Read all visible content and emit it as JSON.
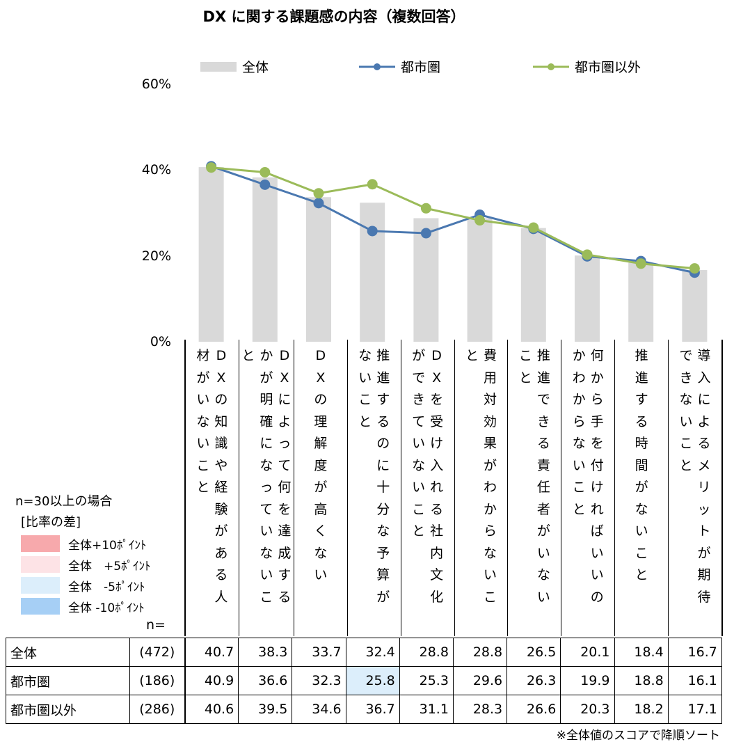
{
  "title": "DX に関する課題感の内容（複数回答）",
  "legend": {
    "overall": "全体",
    "urban": "都市圏",
    "non_urban": "都市圏以外"
  },
  "colors": {
    "bar": "#d9d9d9",
    "urban": "#4a78b0",
    "non_urban": "#9bbb59",
    "minus5": "#dceefb",
    "minus10": "#a6cff5",
    "plus5": "#fde3e6",
    "plus10": "#f7a9ac"
  },
  "key": {
    "heading": "n=30以上の場合",
    "subheading": "[比率の差]",
    "plus10": "全体+10ﾎﾟｲﾝﾄ",
    "plus5": "全体　+5ﾎﾟｲﾝﾄ",
    "minus5": "全体　-5ﾎﾟｲﾝﾄ",
    "minus10": "全体 -10ﾎﾟｲﾝﾄ"
  },
  "n_label": "n=",
  "footnote": "※全体値のスコアで降順ソート",
  "chart_data": {
    "type": "bar",
    "title": "DX に関する課題感の内容（複数回答）",
    "ylim": [
      0,
      60
    ],
    "yticks": [
      "0%",
      "20%",
      "40%",
      "60%"
    ],
    "categories": [
      "DXの知識や経験がある人材がいないこと",
      "DXによって何を達成するかが明確になっていないこと",
      "DXの理解度が高くない",
      "推進するのに十分な予算がないこと",
      "DXを受け入れる社内文化ができていないこと",
      "費用対効果がわからないこと",
      "推進できる責任者がいないこと",
      "何から手を付ければいいのかわからないこと",
      "推進する時間がないこと",
      "導入によるメリットが期待できないこと"
    ],
    "series": [
      {
        "name": "全体",
        "n": "(472)",
        "kind": "bar",
        "values": [
          40.7,
          38.3,
          33.7,
          32.4,
          28.8,
          28.8,
          26.5,
          20.1,
          18.4,
          16.7
        ],
        "labels": [
          "40.7",
          "38.3",
          "33.7",
          "32.4",
          "28.8",
          "28.8",
          "26.5",
          "20.1",
          "18.4",
          "16.7"
        ]
      },
      {
        "name": "都市圏",
        "n": "(186)",
        "kind": "line",
        "values": [
          40.9,
          36.6,
          32.3,
          25.8,
          25.3,
          29.6,
          26.3,
          19.9,
          18.8,
          16.1
        ],
        "labels": [
          "40.9",
          "36.6",
          "32.3",
          "25.8",
          "25.3",
          "29.6",
          "26.3",
          "19.9",
          "18.8",
          "16.1"
        ]
      },
      {
        "name": "都市圏以外",
        "n": "(286)",
        "kind": "line",
        "values": [
          40.6,
          39.5,
          34.6,
          36.7,
          31.1,
          28.3,
          26.6,
          20.3,
          18.2,
          17.1
        ],
        "labels": [
          "40.6",
          "39.5",
          "34.6",
          "36.7",
          "31.1",
          "28.3",
          "26.6",
          "20.3",
          "18.2",
          "17.1"
        ]
      }
    ],
    "highlight": {
      "series": 1,
      "index": 3,
      "level": "minus5"
    }
  }
}
